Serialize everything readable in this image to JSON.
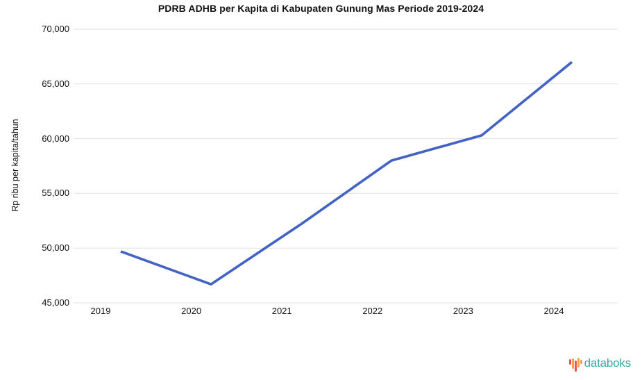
{
  "title": "PDRB ADHB per Kapita di Kabupaten Gunung Mas Periode 2019-2024",
  "chart_data": {
    "type": "line",
    "title": "PDRB ADHB per Kapita di Kabupaten Gunung Mas Periode 2019-2024",
    "categories": [
      "2019",
      "2020",
      "2021",
      "2022",
      "2023",
      "2024"
    ],
    "values": [
      49700,
      46700,
      52200,
      58000,
      60300,
      67000
    ],
    "xlabel": "",
    "ylabel": "Rp ribu per kapita/tahun",
    "ylim": [
      45000,
      70000
    ],
    "y_ticks": [
      45000,
      50000,
      55000,
      60000,
      65000,
      70000
    ],
    "y_tick_labels": [
      "45,000",
      "50,000",
      "55,000",
      "60,000",
      "65,000",
      "70,000"
    ],
    "grid": true,
    "legend": false,
    "line_color": "#4262c4",
    "gridline_color": "#e2e2e2"
  },
  "branding": {
    "logo_text": "databoks",
    "logo_text_color": "#3fa9a3",
    "logo_bar_colors": [
      "#e8574c",
      "#f59e4c",
      "#e8574c",
      "#f0a44c",
      "#f59e4c"
    ]
  }
}
